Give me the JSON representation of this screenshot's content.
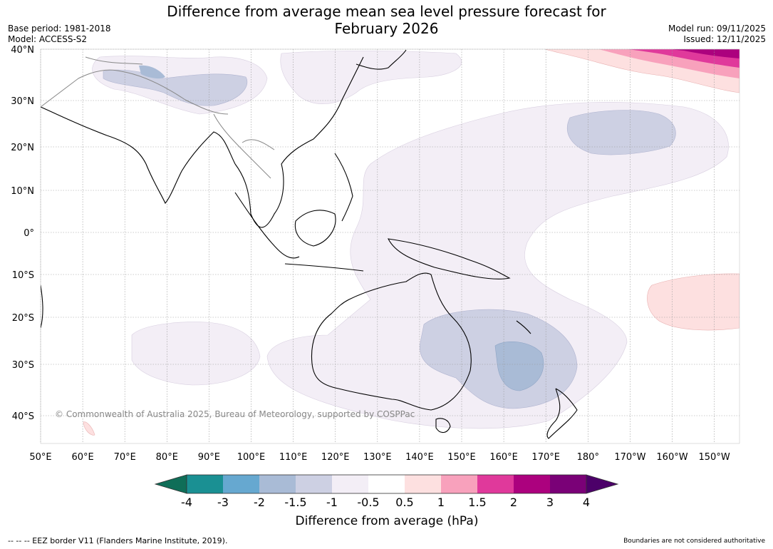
{
  "title": {
    "line1": "Difference from average mean sea level pressure forecast for",
    "line2": "February 2026"
  },
  "meta_left": {
    "base_period": "Base period: 1981-2018",
    "model": "Model: ACCESS-S2"
  },
  "meta_right": {
    "model_run": "Model run: 09/11/2025",
    "issued": "Issued: 12/11/2025"
  },
  "latitudes": [
    "40°N",
    "30°N",
    "20°N",
    "10°N",
    "0°",
    "10°S",
    "20°S",
    "30°S",
    "40°S"
  ],
  "longitudes": [
    "50°E",
    "60°E",
    "70°E",
    "80°E",
    "90°E",
    "100°E",
    "110°E",
    "120°E",
    "130°E",
    "140°E",
    "150°E",
    "160°E",
    "170°E",
    "180°",
    "170°W",
    "160°W",
    "150°W"
  ],
  "copyright": "© Commonwealth of Australia 2025, Bureau of Meteorology, supported by COSPPac",
  "colorbar": {
    "title": "Difference from average (hPa)",
    "ticks": [
      "-4",
      "-3",
      "-2",
      "-1.5",
      "-1",
      "-0.5",
      "0.5",
      "1",
      "1.5",
      "2",
      "3",
      "4"
    ],
    "colors": [
      "#1a9093",
      "#66a8d0",
      "#a9bbd6",
      "#cdd0e3",
      "#f3eef6",
      "#ffffff",
      "#fde0e0",
      "#f8a1bc",
      "#e0399b",
      "#ac017e",
      "#7a0177"
    ],
    "low_extend_color": "#0f6e58",
    "high_extend_color": "#4c0069"
  },
  "footer": {
    "eez": "--  --  -- EEZ border V11 (Flanders Marine Institute, 2019).",
    "boundaries": "Boundaries are not considered authoritative"
  }
}
